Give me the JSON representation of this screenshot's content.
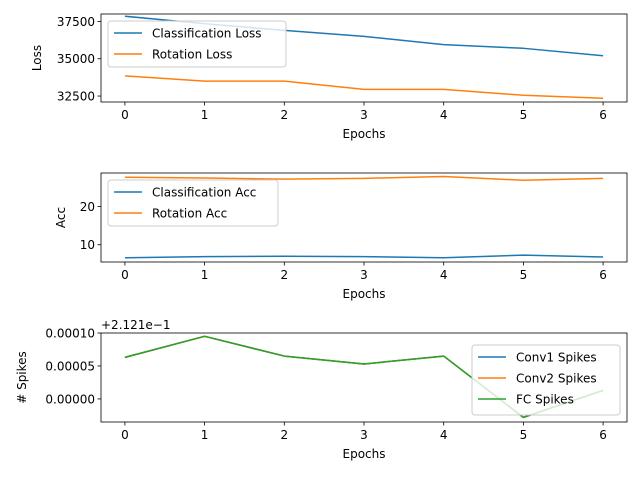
{
  "chart_data": [
    {
      "type": "line",
      "xlabel": "Epochs",
      "ylabel": "Loss",
      "x": [
        0,
        1,
        2,
        3,
        4,
        5,
        6
      ],
      "xlim": [
        -0.3,
        6.3
      ],
      "ylim": [
        32100,
        38000
      ],
      "xticks": [
        0,
        1,
        2,
        3,
        4,
        5,
        6
      ],
      "xtick_labels": [
        "0",
        "1",
        "2",
        "3",
        "4",
        "5",
        "6"
      ],
      "yticks": [
        32500,
        35000,
        37500
      ],
      "ytick_labels": [
        "32500",
        "35000",
        "37500"
      ],
      "offset_label": "",
      "grid": false,
      "legend_position": "upper-left",
      "series": [
        {
          "name": "Classification Loss",
          "color": "#1f77b4",
          "values": [
            37850,
            37350,
            36900,
            36500,
            35950,
            35700,
            35200
          ]
        },
        {
          "name": "Rotation Loss",
          "color": "#ff7f0e",
          "values": [
            33850,
            33500,
            33500,
            32950,
            32950,
            32550,
            32350
          ]
        }
      ]
    },
    {
      "type": "line",
      "xlabel": "Epochs",
      "ylabel": "Acc",
      "x": [
        0,
        1,
        2,
        3,
        4,
        5,
        6
      ],
      "xlim": [
        -0.3,
        6.3
      ],
      "ylim": [
        5.5,
        28.7
      ],
      "xticks": [
        0,
        1,
        2,
        3,
        4,
        5,
        6
      ],
      "xtick_labels": [
        "0",
        "1",
        "2",
        "3",
        "4",
        "5",
        "6"
      ],
      "yticks": [
        10,
        20
      ],
      "ytick_labels": [
        "10",
        "20"
      ],
      "offset_label": "",
      "grid": false,
      "legend_position": "upper-left",
      "series": [
        {
          "name": "Classification Acc",
          "color": "#1f77b4",
          "values": [
            6.6,
            6.9,
            7.0,
            6.9,
            6.6,
            7.3,
            6.8
          ]
        },
        {
          "name": "Rotation Acc",
          "color": "#ff7f0e",
          "values": [
            27.6,
            27.4,
            27.1,
            27.3,
            27.8,
            26.8,
            27.3
          ]
        }
      ]
    },
    {
      "type": "line",
      "xlabel": "Epochs",
      "ylabel": "# Spikes",
      "x": [
        0,
        1,
        2,
        3,
        4,
        5,
        6
      ],
      "xlim": [
        -0.3,
        6.3
      ],
      "ylim": [
        -3.5e-05,
        0.0001
      ],
      "xticks": [
        0,
        1,
        2,
        3,
        4,
        5,
        6
      ],
      "xtick_labels": [
        "0",
        "1",
        "2",
        "3",
        "4",
        "5",
        "6"
      ],
      "yticks": [
        0,
        5e-05,
        0.0001
      ],
      "ytick_labels": [
        "0.00000",
        "0.00005",
        "0.00010"
      ],
      "offset_label": "+2.121e−1",
      "grid": false,
      "legend_position": "lower-right",
      "series": [
        {
          "name": "Conv1 Spikes",
          "color": "#1f77b4",
          "values": [
            6.3e-05,
            9.5e-05,
            6.5e-05,
            5.3e-05,
            6.5e-05,
            -2.8e-05,
            1.3e-05
          ]
        },
        {
          "name": "Conv2 Spikes",
          "color": "#ff7f0e",
          "values": [
            6.3e-05,
            9.5e-05,
            6.5e-05,
            5.3e-05,
            6.5e-05,
            -2.8e-05,
            1.3e-05
          ]
        },
        {
          "name": "FC Spikes",
          "color": "#2ca02c",
          "values": [
            6.3e-05,
            9.5e-05,
            6.5e-05,
            5.3e-05,
            6.5e-05,
            -2.8e-05,
            1.3e-05
          ]
        }
      ]
    }
  ]
}
